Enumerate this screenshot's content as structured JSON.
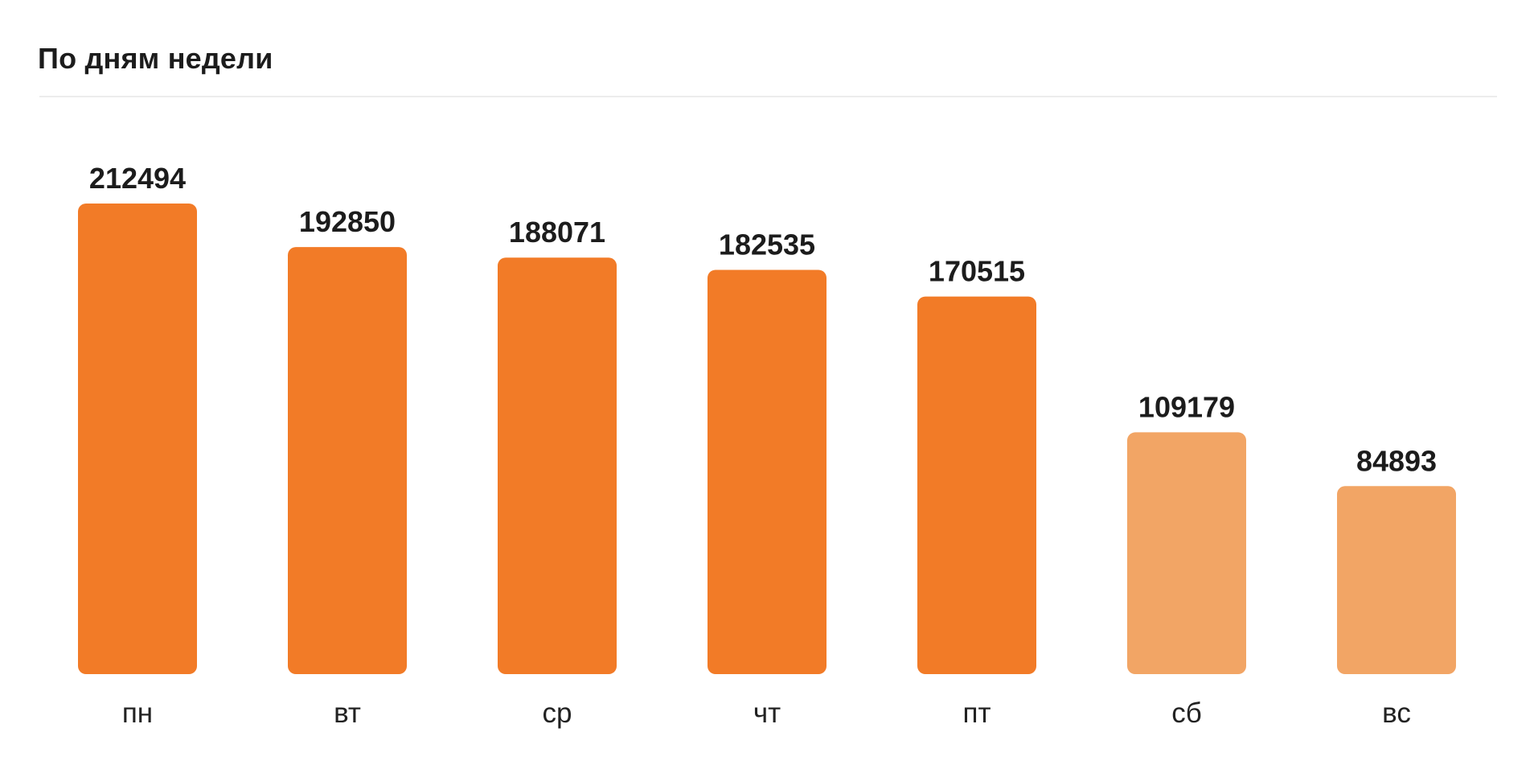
{
  "header": {
    "title": "По дням недели"
  },
  "colors": {
    "weekday": "#f27b27",
    "weekend": "#f2a565"
  },
  "chart_data": {
    "type": "bar",
    "title": "По дням недели",
    "categories": [
      "пн",
      "вт",
      "ср",
      "чт",
      "пт",
      "сб",
      "вс"
    ],
    "values": [
      212494,
      192850,
      188071,
      182535,
      170515,
      109179,
      84893
    ],
    "data_labels": [
      "212494",
      "192850",
      "188071",
      "182535",
      "170515",
      "109179",
      "84893"
    ],
    "highlight": [
      "weekday",
      "weekday",
      "weekday",
      "weekday",
      "weekday",
      "weekend",
      "weekend"
    ],
    "xlabel": "",
    "ylabel": "",
    "ylim": [
      0,
      212494
    ],
    "grid": false,
    "legend": "none"
  }
}
